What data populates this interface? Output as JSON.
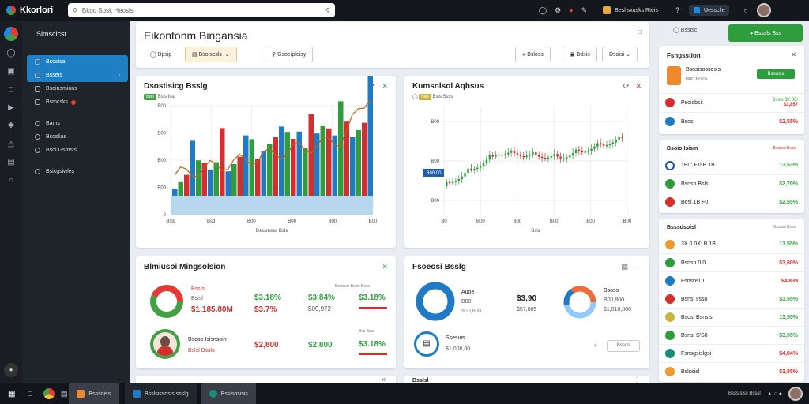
{
  "topbar": {
    "app_name": "Kkorlori",
    "search_placeholder": "Bkoo Sosk Heosls",
    "item1_label": "Besl sxusks Rteis",
    "button_label": "Uessclle"
  },
  "nav": {
    "title": "Slmscicst",
    "items": [
      {
        "label": "Bsosisa"
      },
      {
        "label": "Bssets"
      },
      {
        "label": "Bsoinsmions"
      },
      {
        "label": "Bsmcsks"
      },
      {
        "label": "Bams"
      },
      {
        "label": "Bsoslias"
      },
      {
        "label": "Bsoi Gsotsis"
      },
      {
        "label": "Bsicgsiwles"
      }
    ]
  },
  "header": {
    "title": "Eikontonm Bingansia",
    "btn1": "Bpsip",
    "btn2": "Bsoiscsls",
    "btn3": "Gsoeipleisy",
    "btn4": "Bsloss",
    "btn5": "Bdsis",
    "btn6": "Dsoisi"
  },
  "chart1": {
    "title": "Dsostisicg Bsslg",
    "tag": "Bstp",
    "subtitle": "Bsls Iisg",
    "x_ticks": [
      "Bsls",
      "Bsd",
      "B00",
      "B00",
      "B00",
      "B00"
    ],
    "y_ticks": [
      "0",
      "B00",
      "B00",
      "B00",
      "B00"
    ],
    "xlabel": "Bsssmsso Bsls"
  },
  "chart2": {
    "title": "Kumsnlsol Aqhsus",
    "tag": "Bsls",
    "subtitle": "Bsls Ssss",
    "x_ticks": [
      "B0",
      "B00",
      "B00",
      "B00",
      "B00",
      "B00"
    ],
    "y_ticks": [
      "B00",
      "B00",
      "B00"
    ],
    "marker": "B00.00",
    "xlabel": "Bsls"
  },
  "panel3": {
    "title": "Blmiusoi Mingsolsion",
    "row1": {
      "label1": "Bsslsi",
      "label2": "Bslsl",
      "value": "$1,185.80M",
      "v2": "$3.18%",
      "v3": "$3.7%",
      "v4": "$3.84%",
      "v5": "$09,972",
      "v6": "$3.18%",
      "note": "Bssisosi Bssis Bsss"
    },
    "row2": {
      "label1": "Bsoso Isisnsoin",
      "label2": "Bslsl Bsslo",
      "v1": "$2,800",
      "v2": "$2,800",
      "v3": "$3.18%",
      "note": "Bss Bsss"
    }
  },
  "panel4": {
    "title": "Fsoeosi Bsslg",
    "item1": {
      "label": "Auoe",
      "sub": "B00",
      "val1": "$3,90",
      "val2": "$57,805",
      "sub2": "$50,800"
    },
    "item2": {
      "label": "Bsoss",
      "sub": "B00,800",
      "val": "$1,810,800"
    },
    "item3": {
      "label": "Ssesuis",
      "sub": "$1,008,00"
    },
    "btn": "Bssos"
  },
  "bottom_cards": {
    "card1": "",
    "card2": "Bsslsl"
  },
  "right": {
    "btn1": "Bsstsc",
    "btn2": "Bsssls Bss",
    "panel1": {
      "title": "Fsngsstion",
      "main_label": "Bsnsisossosis",
      "sub_label": "B00 B0.0s",
      "badge": "Bsoosis",
      "row1": {
        "label": "Psoicbsil",
        "val1": "Bssls $7,85/",
        "val2": "$3,857"
      },
      "row2": {
        "label": "Bsosl",
        "val": "$2,55%"
      }
    },
    "panel2": {
      "title": "Bsoio Isisin",
      "note": "Bsoiosl Bsssl",
      "rows": [
        {
          "label": "1B0: F.0 B.1B",
          "val": "13,53%",
          "color": "green"
        },
        {
          "label": "Bsnsb Bsls",
          "val": "$2,70%",
          "color": "green"
        },
        {
          "label": "Bosl.1B F0",
          "val": "$2,55%",
          "color": "green"
        }
      ]
    },
    "panel3": {
      "title": "Bsssdsoisl",
      "note": "Bsssisi Bsssl",
      "rows": [
        {
          "label": "3X.0 0X: B.1B",
          "val": "13,55%",
          "color": "green"
        },
        {
          "label": "Bsnsb 0 0",
          "val": "$3,80%",
          "color": "red"
        },
        {
          "label": "Fsnsbsl J",
          "val": "$4,839",
          "color": "red"
        },
        {
          "label": "Bsnsi Iisso",
          "val": "$3,55%",
          "color": "green"
        },
        {
          "label": "Bsosl Bsnsisl",
          "val": "13,55%",
          "color": "green"
        },
        {
          "label": "Bsnsi S'S0",
          "val": "$3,55%",
          "color": "green"
        },
        {
          "label": "Fsnsgsislgsi",
          "val": "$4,84%",
          "color": "red"
        },
        {
          "label": "Bslssisl",
          "val": "$3,85%",
          "color": "red"
        }
      ]
    }
  },
  "taskbar": {
    "task1": "Bsssoiss",
    "task2": "Bsslsissnsis ssslg",
    "task3": "Bsslsosisis",
    "time": "Bsssisiss Bsssl"
  }
}
